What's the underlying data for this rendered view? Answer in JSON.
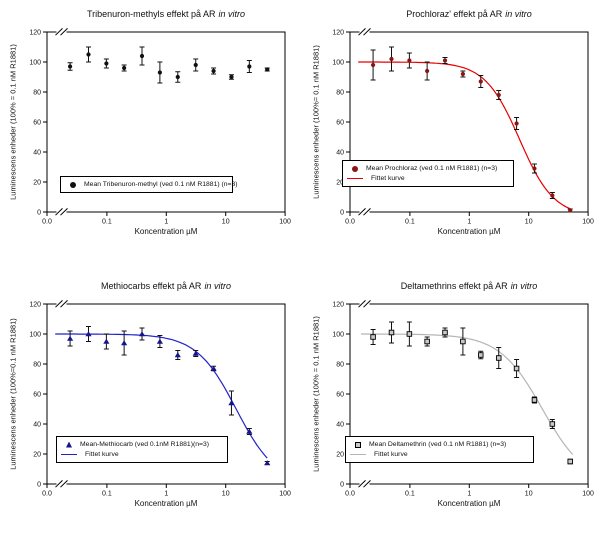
{
  "shared": {
    "background": "#ffffff",
    "axis_color": "#000000",
    "xscale": "log-with-axis-break",
    "grid": false,
    "legend_position": "lower-left-inside",
    "x_origin_label": "0.0",
    "xticks": [
      0.1,
      1,
      10,
      100
    ],
    "xtick_labels": [
      "0.1",
      "1",
      "10",
      "100"
    ],
    "yticks": [
      0,
      20,
      40,
      60,
      80,
      100,
      120
    ],
    "ytick_labels": [
      "0",
      "20",
      "40",
      "60",
      "80",
      "100",
      "120"
    ],
    "ylim": [
      0,
      120
    ]
  },
  "chart_data": [
    {
      "type": "scatter",
      "title": "Tribenuron-methyls effekt på AR",
      "title_italic": "in vitro",
      "ylabel": "Luminescens enheder (100% = 0.1 nM R1881)",
      "xlabel": "Koncentration µM",
      "x": [
        0.024,
        0.049,
        0.098,
        0.195,
        0.39,
        0.78,
        1.56,
        3.13,
        6.25,
        12.5,
        25,
        50
      ],
      "values": [
        97,
        105,
        99,
        96,
        104,
        93,
        90,
        98,
        94,
        90,
        97,
        95
      ],
      "errors": [
        2.5,
        5,
        3,
        2,
        6,
        7,
        3.5,
        4,
        2,
        1.5,
        4,
        1
      ],
      "marker": "circle",
      "marker_color": "#111111",
      "curve": null,
      "legend_label": "Mean Tribenuron-methyl (ved 0.1 nM R1881) (n=3)"
    },
    {
      "type": "scatter",
      "title": "Prochloraz' effekt på AR",
      "title_italic": "in vitro",
      "ylabel": "Luminescens enheder (100%= 0.1 nM R1881)",
      "xlabel": "Koncentration µM",
      "x": [
        0.024,
        0.049,
        0.098,
        0.195,
        0.39,
        0.78,
        1.56,
        3.13,
        6.25,
        12.5,
        25,
        50
      ],
      "values": [
        98,
        102,
        101,
        94,
        101,
        92,
        87,
        78,
        59,
        29,
        11,
        1
      ],
      "errors": [
        10,
        8,
        5,
        6,
        2,
        2,
        4,
        3,
        4,
        3,
        2,
        1
      ],
      "marker": "circle",
      "marker_color": "#8b1414",
      "curve": {
        "label": "Fittet kurve",
        "color": "#e60000",
        "top": 100,
        "bottom": -3,
        "ec50": 7,
        "hill": 1.5,
        "x_start": 0.0135,
        "x_end": 52
      },
      "legend_label": "Mean Prochloraz (ved 0.1 nM R1881) (n=3)"
    },
    {
      "type": "scatter",
      "title": "Methiocarbs effekt på AR",
      "title_italic": "in vitro",
      "ylabel": "Luminescens enheder (100%=0.1 nM R1881)",
      "xlabel": "Koncentration µM",
      "x": [
        0.024,
        0.049,
        0.098,
        0.195,
        0.39,
        0.78,
        1.56,
        3.13,
        6.25,
        12.5,
        25,
        50
      ],
      "values": [
        97,
        100,
        95,
        94,
        100,
        95,
        86,
        87,
        77,
        54,
        35,
        14
      ],
      "errors": [
        5,
        5,
        5,
        8,
        4,
        4,
        3,
        2,
        1.5,
        8,
        2,
        1
      ],
      "marker": "triangle",
      "marker_color": "#16168c",
      "curve": {
        "label": "Fittet kurve",
        "color": "#2222cc",
        "top": 100,
        "bottom": 0,
        "ec50": 15,
        "hill": 1.3,
        "x_start": 0.0135,
        "x_end": 50
      },
      "legend_label": "Mean-Methiocarb (ved 0.1nM R1881)(n=3)"
    },
    {
      "type": "scatter",
      "title": "Deltamethrins effekt på AR",
      "title_italic": "in vitro",
      "ylabel": "Luminescens enheder (100% = 0.1 nM R1881)",
      "xlabel": "Koncentration µM",
      "x": [
        0.024,
        0.049,
        0.098,
        0.195,
        0.39,
        0.78,
        1.56,
        3.13,
        6.25,
        12.5,
        25,
        50
      ],
      "values": [
        98,
        101,
        100,
        95,
        101,
        95,
        86,
        84,
        77,
        56,
        40,
        15
      ],
      "errors": [
        5,
        7,
        8,
        3,
        3,
        9,
        2.5,
        7,
        6,
        2,
        3,
        1.5
      ],
      "marker": "square",
      "marker_color": "#c9c9c9",
      "marker_stroke": "#000000",
      "curve": {
        "label": "Fittet kurve",
        "color": "#b5b5b5",
        "top": 100,
        "bottom": 0,
        "ec50": 17,
        "hill": 1.2,
        "x_start": 0.015,
        "x_end": 55
      },
      "legend_label": "Mean Deltamethrin (ved 0.1 nM R1881) (n=3)"
    }
  ]
}
